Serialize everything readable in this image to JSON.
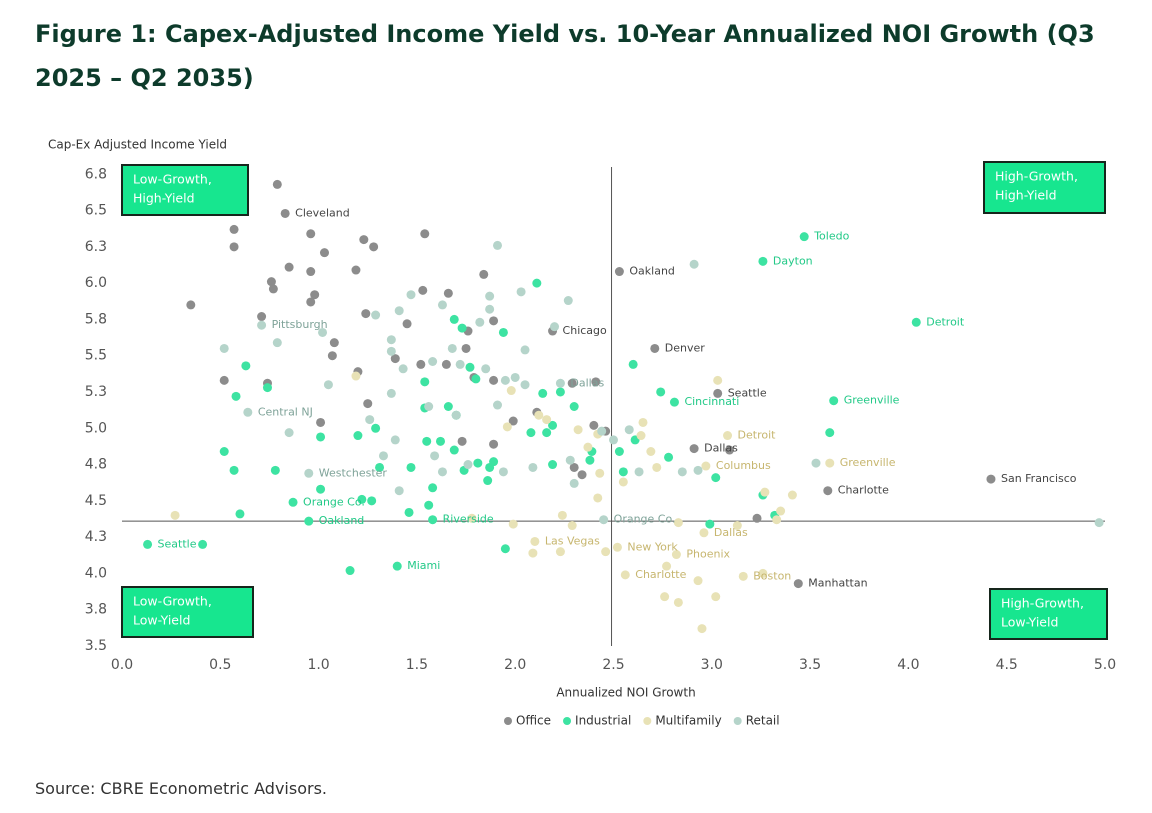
{
  "chart_data": {
    "type": "scatter",
    "title": "Figure 1: Capex-Adjusted Income Yield vs. 10-Year Annualized NOI Growth (Q3 2025 – Q2 2035)",
    "x_label": "Annualized NOI Growth",
    "y_label": "Cap-Ex Adjusted Income Yield",
    "source": "Source: CBRE Econometric Advisors.",
    "xlim": [
      0,
      5
    ],
    "ylim": [
      3.5,
      6.8
    ],
    "xticks": [
      {
        "value": 0,
        "label": "0.0"
      },
      0.5,
      {
        "value": 1,
        "label": "1.0"
      },
      1.5,
      {
        "value": 2,
        "label": "2.0"
      },
      2.5,
      {
        "value": 3,
        "label": "3.0"
      },
      3.5,
      {
        "value": 4,
        "label": "4.0"
      },
      4.5,
      {
        "value": 5,
        "label": "5.0"
      }
    ],
    "yticks": [
      3.5,
      {
        "value": 3.75,
        "label": "3.8"
      },
      {
        "value": 4,
        "label": "4.0"
      },
      {
        "value": 4.25,
        "label": "4.3"
      },
      4.5,
      {
        "value": 4.75,
        "label": "4.8"
      },
      {
        "value": 5,
        "label": "5.0"
      },
      {
        "value": 5.25,
        "label": "5.3"
      },
      5.5,
      {
        "value": 5.75,
        "label": "5.8"
      },
      {
        "value": 6,
        "label": "6.0"
      },
      {
        "value": 6.25,
        "label": "6.3"
      },
      6.5,
      {
        "value": 6.75,
        "label": "6.8"
      }
    ],
    "x_reference": 2.49,
    "y_reference": 4.36,
    "legend": "bottom",
    "annotations": [
      {
        "lines": [
          "Low-Growth,",
          "High-Yield"
        ],
        "corner": "top-left"
      },
      {
        "lines": [
          "High-Growth,",
          "High-Yield"
        ],
        "corner": "top-right"
      },
      {
        "lines": [
          "Low-Growth,",
          "Low-Yield"
        ],
        "corner": "bottom-left"
      },
      {
        "lines": [
          "High-Growth,",
          "Low-Yield"
        ],
        "corner": "bottom-right"
      }
    ],
    "series": [
      {
        "name": "Office",
        "color": "#8c8c8c",
        "label_color": "#444444",
        "x": [
          0.83,
          2.53,
          2.19,
          2.71,
          3.03,
          2.91,
          3.59,
          4.42,
          3.44,
          0.79,
          0.57,
          0.57,
          0.96,
          1.23,
          1.28,
          1.54,
          1.03,
          0.35,
          0.85,
          0.76,
          0.77,
          0.96,
          1.19,
          0.98,
          0.96,
          0.71,
          1.08,
          1.07,
          1.24,
          1.53,
          1.66,
          1.45,
          1.39,
          1.52,
          1.65,
          1.75,
          1.76,
          1.89,
          1.84,
          1.89,
          1.79,
          0.52,
          0.74,
          1.2,
          1.25,
          1.01,
          1.73,
          1.89,
          1.99,
          2.11,
          2.3,
          2.34,
          2.29,
          2.41,
          2.4,
          2.46,
          3.09,
          3.23
        ],
        "values": [
          6.48,
          6.08,
          5.67,
          5.55,
          5.24,
          4.86,
          4.57,
          4.65,
          3.93,
          6.68,
          6.37,
          6.25,
          6.34,
          6.3,
          6.25,
          6.34,
          6.21,
          5.85,
          6.11,
          6.01,
          5.96,
          6.08,
          6.09,
          5.92,
          5.87,
          5.77,
          5.59,
          5.5,
          5.79,
          5.95,
          5.93,
          5.72,
          5.48,
          5.44,
          5.44,
          5.55,
          5.67,
          5.74,
          6.06,
          5.33,
          5.35,
          5.33,
          5.31,
          5.39,
          5.17,
          5.04,
          4.91,
          4.89,
          5.05,
          5.11,
          4.73,
          4.68,
          5.31,
          5.32,
          5.02,
          4.98,
          4.85,
          4.38
        ],
        "point_labels": [
          "Cleveland",
          "Oakland",
          "Chicago",
          "Denver",
          "Seattle",
          "Dallas",
          "Charlotte",
          "San Francisco",
          "Manhattan",
          null,
          null,
          null,
          null,
          null,
          null,
          null,
          null,
          null,
          null,
          null,
          null,
          null,
          null,
          null,
          null,
          null,
          null,
          null,
          null,
          null,
          null,
          null,
          null,
          null,
          null,
          null,
          null,
          null,
          null,
          null,
          null,
          null,
          null,
          null,
          null,
          null,
          null,
          null,
          null,
          null,
          null,
          null,
          null,
          null,
          null,
          null,
          null,
          null
        ]
      },
      {
        "name": "Industrial",
        "color": "#3de3a2",
        "label_color": "#22c987",
        "x": [
          3.47,
          3.26,
          4.04,
          3.62,
          2.81,
          0.87,
          0.95,
          0.13,
          1.4,
          1.58,
          2.11,
          1.69,
          1.73,
          1.94,
          0.63,
          0.58,
          0.74,
          0.52,
          0.57,
          0.78,
          0.6,
          1.01,
          1.01,
          1.2,
          1.29,
          1.31,
          1.22,
          1.27,
          1.16,
          1.46,
          1.47,
          1.54,
          1.54,
          1.55,
          1.56,
          1.58,
          1.62,
          1.66,
          1.69,
          1.7,
          1.74,
          1.77,
          1.8,
          1.81,
          1.86,
          1.87,
          1.89,
          1.95,
          2.08,
          2.16,
          2.19,
          2.19,
          2.23,
          2.3,
          2.14,
          2.38,
          2.39,
          2.53,
          2.6,
          2.61,
          2.74,
          2.55,
          2.78,
          3.02,
          2.99,
          3.26,
          3.32,
          3.6,
          0.41
        ],
        "values": [
          6.32,
          6.15,
          5.73,
          5.19,
          5.18,
          4.49,
          4.36,
          4.2,
          4.05,
          4.37,
          6.0,
          5.75,
          5.69,
          5.66,
          5.43,
          5.22,
          5.28,
          4.84,
          4.71,
          4.71,
          4.41,
          4.94,
          4.58,
          4.95,
          5.0,
          4.73,
          4.51,
          4.5,
          4.02,
          4.42,
          4.73,
          5.32,
          5.14,
          4.91,
          4.47,
          4.59,
          4.91,
          5.15,
          4.85,
          5.09,
          4.71,
          5.42,
          5.34,
          4.76,
          4.64,
          4.73,
          4.77,
          4.17,
          4.97,
          4.97,
          4.75,
          5.02,
          5.25,
          5.15,
          5.24,
          4.78,
          4.84,
          4.84,
          5.44,
          4.92,
          5.25,
          4.7,
          4.8,
          4.66,
          4.34,
          4.54,
          4.4,
          4.97,
          4.2
        ],
        "point_labels": [
          "Toledo",
          "Dayton",
          "Detroit",
          "Greenville",
          "Cincinnati",
          "Orange Co.",
          "Oakland",
          "Seattle",
          "Miami",
          "Riverside",
          null,
          null,
          null,
          null,
          null,
          null,
          null,
          null,
          null,
          null,
          null,
          null,
          null,
          null,
          null,
          null,
          null,
          null,
          null,
          null,
          null,
          null,
          null,
          null,
          null,
          null,
          null,
          null,
          null,
          null,
          null,
          null,
          null,
          null,
          null,
          null,
          null,
          null,
          null,
          null,
          null,
          null,
          null,
          null,
          null,
          null,
          null,
          null,
          null,
          null,
          null,
          null,
          null,
          null,
          null,
          null,
          null,
          null,
          null
        ]
      },
      {
        "name": "Multifamily",
        "color": "#e8e2b6",
        "label_color": "#c7b66f",
        "x": [
          3.08,
          3.6,
          2.97,
          2.96,
          2.1,
          2.52,
          2.82,
          2.56,
          3.16,
          0.27,
          1.19,
          1.78,
          1.99,
          2.09,
          2.24,
          2.29,
          2.23,
          2.32,
          2.42,
          2.37,
          2.42,
          2.43,
          2.55,
          2.46,
          2.64,
          2.65,
          2.69,
          2.72,
          2.77,
          2.83,
          2.93,
          2.83,
          2.76,
          3.02,
          2.95,
          3.03,
          3.13,
          3.27,
          3.35,
          3.41,
          3.26,
          3.33,
          2.12,
          2.16,
          1.96,
          1.98
        ],
        "values": [
          4.95,
          4.76,
          4.74,
          4.28,
          4.22,
          4.18,
          4.13,
          3.99,
          3.98,
          4.4,
          5.36,
          4.38,
          4.34,
          4.14,
          4.4,
          4.33,
          4.15,
          4.99,
          4.96,
          4.87,
          4.52,
          4.69,
          4.63,
          4.15,
          4.95,
          5.04,
          4.84,
          4.73,
          4.05,
          4.35,
          3.95,
          3.8,
          3.84,
          3.84,
          3.62,
          5.33,
          4.33,
          4.56,
          4.43,
          4.54,
          4.0,
          4.37,
          5.09,
          5.06,
          5.01,
          5.26
        ],
        "point_labels": [
          "Detroit",
          "Greenville",
          "Columbus",
          "Dallas",
          "Las Vegas",
          "New York",
          "Phoenix",
          "Charlotte",
          "Boston",
          null,
          null,
          null,
          null,
          null,
          null,
          null,
          null,
          null,
          null,
          null,
          null,
          null,
          null,
          null,
          null,
          null,
          null,
          null,
          null,
          null,
          null,
          null,
          null,
          null,
          null,
          null,
          null,
          null,
          null,
          null,
          null,
          null,
          null,
          null,
          null,
          null
        ]
      },
      {
        "name": "Retail",
        "color": "#b5d4ca",
        "label_color": "#7fa399",
        "x": [
          0.71,
          0.64,
          0.95,
          2.23,
          2.45,
          1.91,
          2.91,
          2.27,
          2.03,
          1.87,
          1.47,
          1.41,
          1.29,
          1.63,
          1.82,
          1.87,
          2.2,
          0.79,
          0.52,
          1.02,
          1.37,
          1.37,
          1.43,
          1.58,
          1.68,
          1.72,
          1.85,
          2.05,
          1.05,
          1.37,
          1.26,
          1.56,
          1.7,
          1.91,
          1.95,
          2.0,
          2.05,
          0.85,
          1.33,
          1.39,
          1.41,
          1.59,
          1.63,
          1.76,
          1.94,
          2.09,
          2.28,
          2.3,
          2.44,
          2.5,
          2.58,
          2.63,
          2.85,
          2.93,
          3.53,
          4.97
        ],
        "values": [
          5.71,
          5.11,
          4.69,
          5.31,
          4.37,
          6.26,
          6.13,
          5.88,
          5.94,
          5.91,
          5.92,
          5.81,
          5.78,
          5.85,
          5.73,
          5.82,
          5.7,
          5.59,
          5.55,
          5.66,
          5.61,
          5.53,
          5.41,
          5.46,
          5.55,
          5.44,
          5.41,
          5.54,
          5.3,
          5.24,
          5.06,
          5.15,
          5.09,
          5.16,
          5.33,
          5.35,
          5.3,
          4.97,
          4.81,
          4.92,
          4.57,
          4.81,
          4.7,
          4.75,
          4.7,
          4.73,
          4.78,
          4.62,
          4.98,
          4.92,
          4.99,
          4.7,
          4.7,
          4.71,
          4.76,
          4.35
        ],
        "point_labels": [
          "Pittsburgh",
          "Central NJ",
          "Westchester",
          "Dallas",
          "Orange Co.",
          null,
          null,
          null,
          null,
          null,
          null,
          null,
          null,
          null,
          null,
          null,
          null,
          null,
          null,
          null,
          null,
          null,
          null,
          null,
          null,
          null,
          null,
          null,
          null,
          null,
          null,
          null,
          null,
          null,
          null,
          null,
          null,
          null,
          null,
          null,
          null,
          null,
          null,
          null,
          null,
          null,
          null,
          null,
          null,
          null,
          null,
          null,
          null,
          null,
          null,
          null
        ]
      }
    ]
  }
}
